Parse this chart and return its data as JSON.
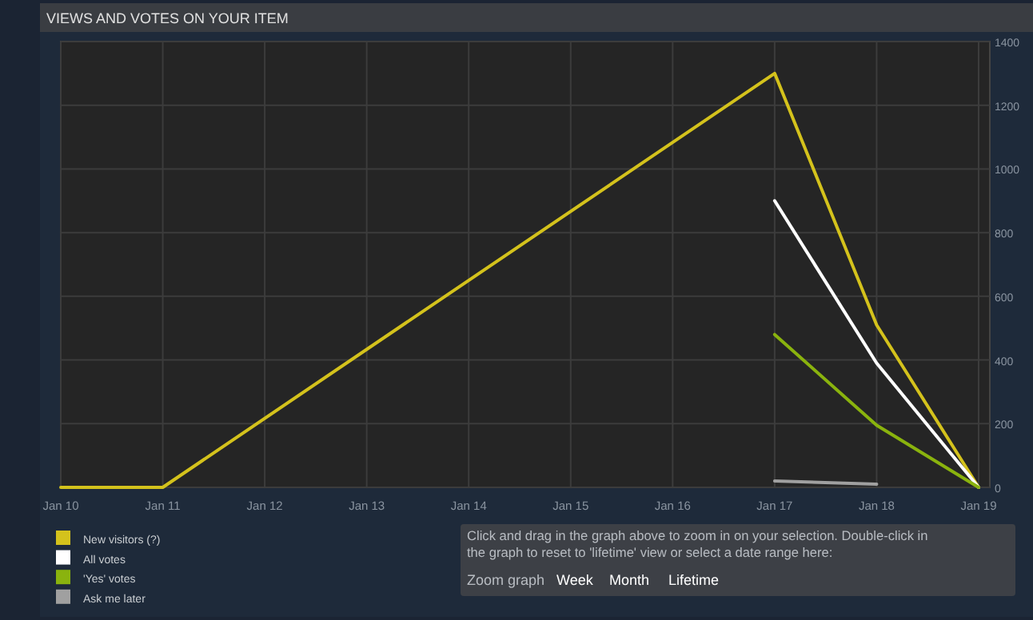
{
  "chart_data": {
    "type": "line",
    "title": "VIEWS AND VOTES ON YOUR ITEM",
    "xlim": [
      "--01-10",
      "--01-19"
    ],
    "xticks": [
      {
        "value": "--01-10",
        "label": "Jan 10"
      },
      {
        "value": "--01-11",
        "label": "Jan 11"
      },
      {
        "value": "--01-12",
        "label": "Jan 12"
      },
      {
        "value": "--01-13",
        "label": "Jan 13"
      },
      {
        "value": "--01-14",
        "label": "Jan 14"
      },
      {
        "value": "--01-15",
        "label": "Jan 15"
      },
      {
        "value": "--01-16",
        "label": "Jan 16"
      },
      {
        "value": "--01-17",
        "label": "Jan 17"
      },
      {
        "value": "--01-18",
        "label": "Jan 18"
      },
      {
        "value": "--01-19",
        "label": "Jan 19"
      }
    ],
    "ylim": [
      0,
      1400
    ],
    "yticks": [
      0,
      200,
      400,
      600,
      800,
      1000,
      1200,
      1400
    ],
    "grid": true,
    "legend": "bottom left",
    "marker": "none",
    "line_style": "solid",
    "series": [
      {
        "name": "New visitors (?)",
        "color": "#d4c21c",
        "x": [
          "--01-10",
          "--01-11",
          "--01-17",
          "--01-18",
          "--01-19"
        ],
        "values": [
          0,
          0,
          1300,
          510,
          0
        ]
      },
      {
        "name": "All votes",
        "color": "#ffffff",
        "x": [
          "--01-17",
          "--01-18",
          "--01-19"
        ],
        "values": [
          900,
          390,
          0
        ]
      },
      {
        "name": "'Yes' votes",
        "color": "#8ab30e",
        "x": [
          "--01-17",
          "--01-18",
          "--01-19"
        ],
        "values": [
          480,
          195,
          0
        ]
      },
      {
        "name": "Ask me later",
        "color": "#a0a0a0",
        "x": [
          "--01-17",
          "--01-18"
        ],
        "values": [
          20,
          10
        ]
      }
    ],
    "annotations": [
      "Click and drag in the graph above to zoom in on your selection. Double-click in the graph to reset to 'lifetime' view or select a date range here:",
      "Zoom graph",
      "Week",
      "Month",
      "Lifetime"
    ]
  }
}
